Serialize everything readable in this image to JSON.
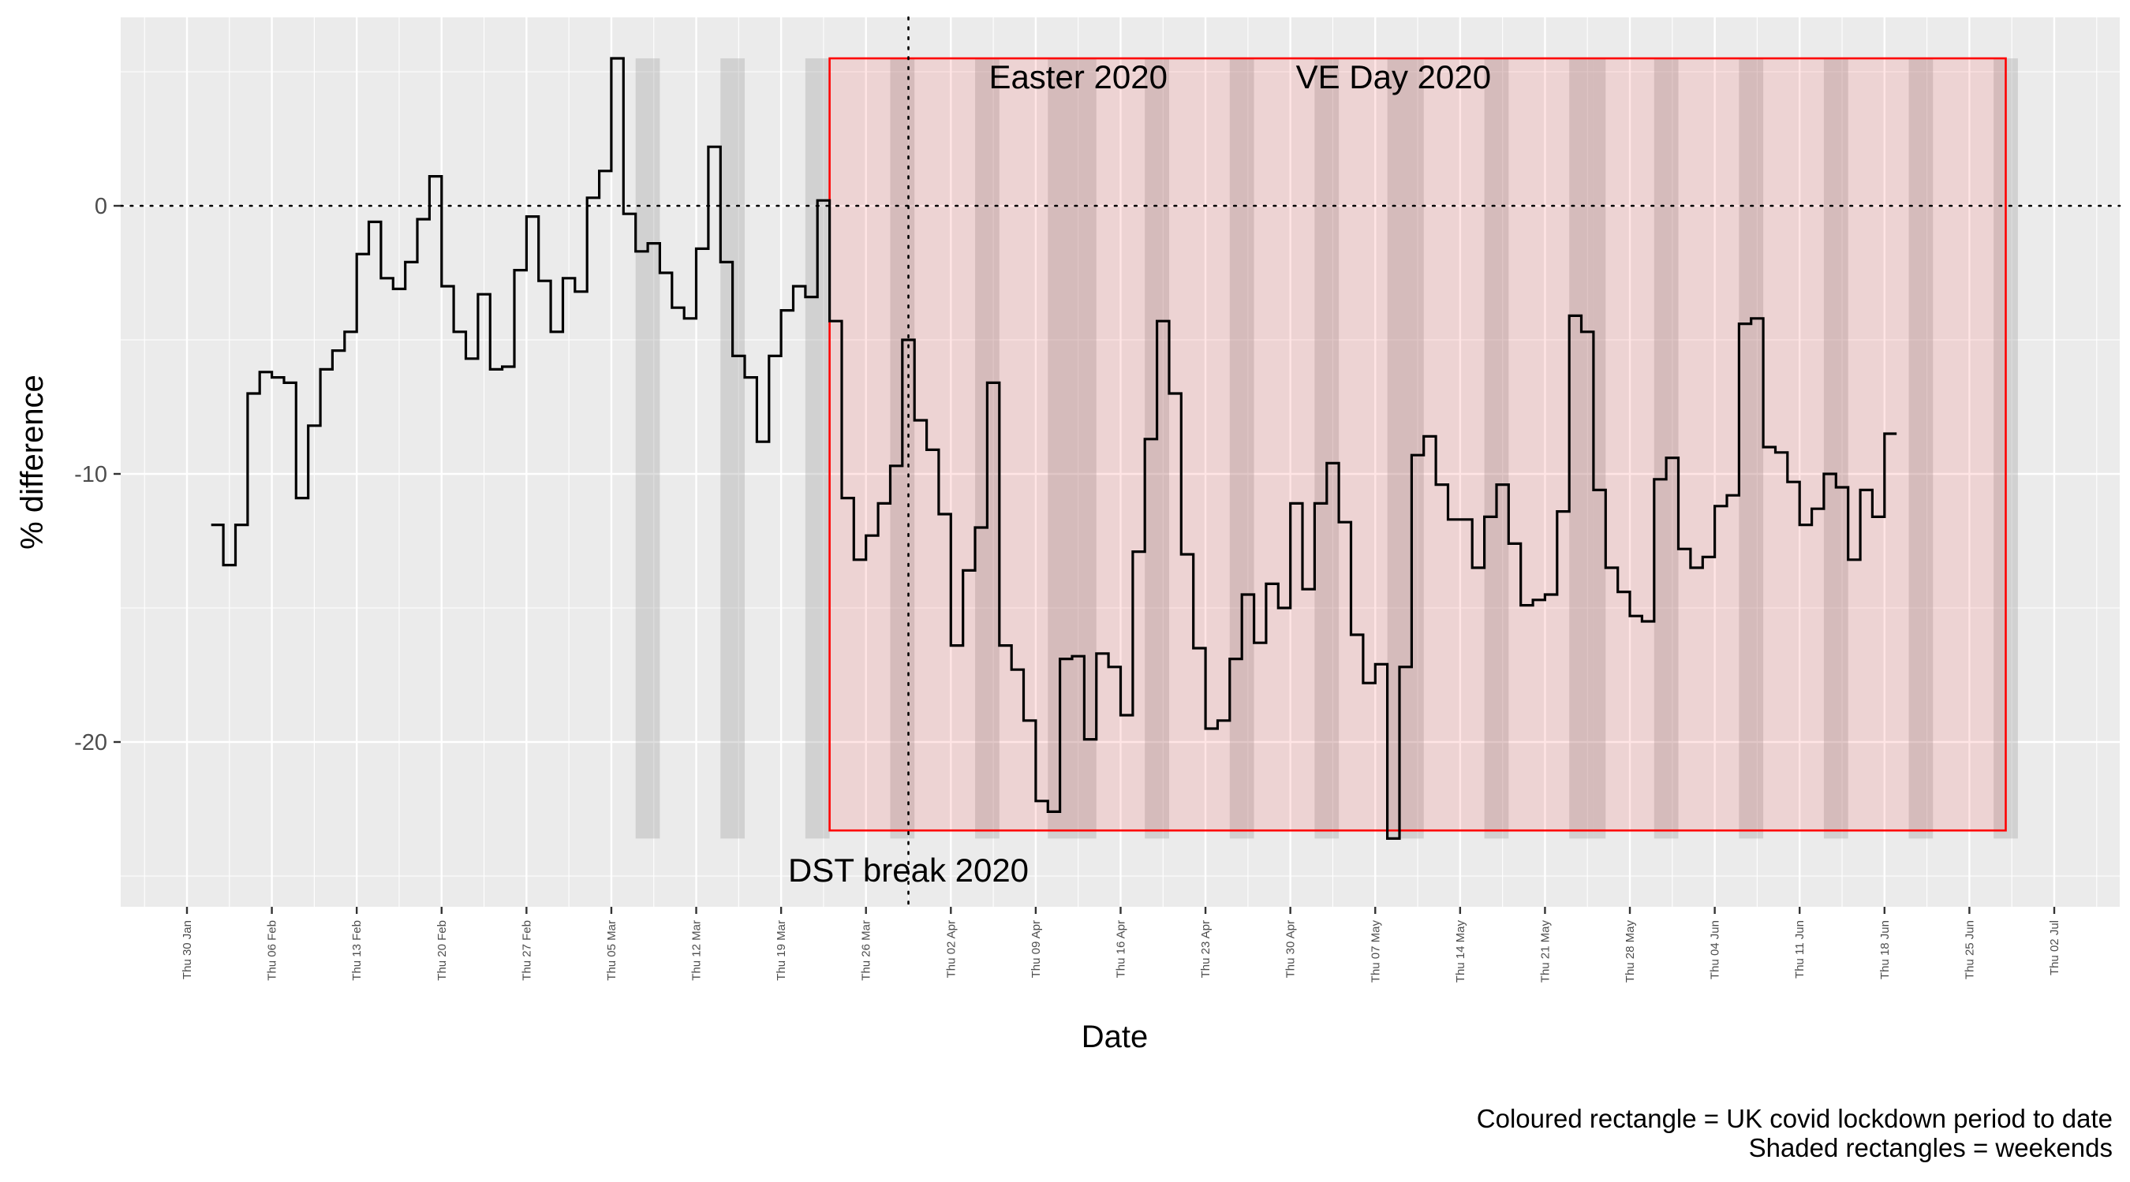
{
  "chart_data": {
    "type": "line",
    "title": "",
    "xlabel": "Date",
    "ylabel": "% difference",
    "x_range": [
      "2020-01-25",
      "2020-07-04"
    ],
    "ylim": [
      -26.1,
      6.5
    ],
    "y_ticks": [
      0,
      -10,
      -20
    ],
    "y_tick_labels": [
      "0",
      "-10",
      "-20"
    ],
    "x_ticks": [
      {
        "date": "2020-01-30",
        "label": "Thu 30 Jan"
      },
      {
        "date": "2020-02-06",
        "label": "Thu 06 Feb"
      },
      {
        "date": "2020-02-13",
        "label": "Thu 13 Feb"
      },
      {
        "date": "2020-02-20",
        "label": "Thu 20 Feb"
      },
      {
        "date": "2020-02-27",
        "label": "Thu 27 Feb"
      },
      {
        "date": "2020-03-05",
        "label": "Thu 05 Mar"
      },
      {
        "date": "2020-03-12",
        "label": "Thu 12 Mar"
      },
      {
        "date": "2020-03-19",
        "label": "Thu 19 Mar"
      },
      {
        "date": "2020-03-26",
        "label": "Thu 26 Mar"
      },
      {
        "date": "2020-04-02",
        "label": "Thu 02 Apr"
      },
      {
        "date": "2020-04-09",
        "label": "Thu 09 Apr"
      },
      {
        "date": "2020-04-16",
        "label": "Thu 16 Apr"
      },
      {
        "date": "2020-04-23",
        "label": "Thu 23 Apr"
      },
      {
        "date": "2020-04-30",
        "label": "Thu 30 Apr"
      },
      {
        "date": "2020-05-07",
        "label": "Thu 07 May"
      },
      {
        "date": "2020-05-14",
        "label": "Thu 14 May"
      },
      {
        "date": "2020-05-21",
        "label": "Thu 21 May"
      },
      {
        "date": "2020-05-28",
        "label": "Thu 28 May"
      },
      {
        "date": "2020-06-04",
        "label": "Thu 04 Jun"
      },
      {
        "date": "2020-06-11",
        "label": "Thu 11 Jun"
      },
      {
        "date": "2020-06-18",
        "label": "Thu 18 Jun"
      },
      {
        "date": "2020-06-25",
        "label": "Thu 25 Jun"
      },
      {
        "date": "2020-07-02",
        "label": "Thu 02 Jul"
      }
    ],
    "series": [
      {
        "style": "step",
        "color": "#000000",
        "x": [
          "2020-02-01",
          "2020-02-02",
          "2020-02-03",
          "2020-02-04",
          "2020-02-05",
          "2020-02-06",
          "2020-02-07",
          "2020-02-08",
          "2020-02-09",
          "2020-02-10",
          "2020-02-11",
          "2020-02-12",
          "2020-02-13",
          "2020-02-14",
          "2020-02-15",
          "2020-02-16",
          "2020-02-17",
          "2020-02-18",
          "2020-02-19",
          "2020-02-20",
          "2020-02-21",
          "2020-02-22",
          "2020-02-23",
          "2020-02-24",
          "2020-02-25",
          "2020-02-26",
          "2020-02-27",
          "2020-02-28",
          "2020-02-29",
          "2020-03-01",
          "2020-03-02",
          "2020-03-03",
          "2020-03-04",
          "2020-03-05",
          "2020-03-06",
          "2020-03-07",
          "2020-03-08",
          "2020-03-09",
          "2020-03-10",
          "2020-03-11",
          "2020-03-12",
          "2020-03-13",
          "2020-03-14",
          "2020-03-15",
          "2020-03-16",
          "2020-03-17",
          "2020-03-18",
          "2020-03-19",
          "2020-03-20",
          "2020-03-21",
          "2020-03-22",
          "2020-03-23",
          "2020-03-24",
          "2020-03-25",
          "2020-03-26",
          "2020-03-27",
          "2020-03-28",
          "2020-03-29",
          "2020-03-30",
          "2020-03-31",
          "2020-04-01",
          "2020-04-02",
          "2020-04-03",
          "2020-04-04",
          "2020-04-05",
          "2020-04-06",
          "2020-04-07",
          "2020-04-08",
          "2020-04-09",
          "2020-04-10",
          "2020-04-11",
          "2020-04-12",
          "2020-04-13",
          "2020-04-14",
          "2020-04-15",
          "2020-04-16",
          "2020-04-17",
          "2020-04-18",
          "2020-04-19",
          "2020-04-20",
          "2020-04-21",
          "2020-04-22",
          "2020-04-23",
          "2020-04-24",
          "2020-04-25",
          "2020-04-26",
          "2020-04-27",
          "2020-04-28",
          "2020-04-29",
          "2020-04-30",
          "2020-05-01",
          "2020-05-02",
          "2020-05-03",
          "2020-05-04",
          "2020-05-05",
          "2020-05-06",
          "2020-05-07",
          "2020-05-08",
          "2020-05-09",
          "2020-05-10",
          "2020-05-11",
          "2020-05-12",
          "2020-05-13",
          "2020-05-14",
          "2020-05-15",
          "2020-05-16",
          "2020-05-17",
          "2020-05-18",
          "2020-05-19",
          "2020-05-20",
          "2020-05-21",
          "2020-05-22",
          "2020-05-23",
          "2020-05-24",
          "2020-05-25",
          "2020-05-26",
          "2020-05-27",
          "2020-05-28",
          "2020-05-29",
          "2020-05-30",
          "2020-05-31",
          "2020-06-01",
          "2020-06-02",
          "2020-06-03",
          "2020-06-04",
          "2020-06-05",
          "2020-06-06",
          "2020-06-07",
          "2020-06-08",
          "2020-06-09",
          "2020-06-10",
          "2020-06-11",
          "2020-06-12",
          "2020-06-13",
          "2020-06-14",
          "2020-06-15",
          "2020-06-16",
          "2020-06-17",
          "2020-06-18"
        ],
        "y": [
          -11.9,
          -13.4,
          -11.9,
          -7.0,
          -6.2,
          -6.4,
          -6.6,
          -10.9,
          -8.2,
          -6.1,
          -5.4,
          -4.7,
          -1.8,
          -0.6,
          -2.7,
          -3.1,
          -2.1,
          -0.5,
          1.1,
          -3.0,
          -4.7,
          -5.7,
          -3.3,
          -6.1,
          -6.0,
          -2.4,
          -0.4,
          -2.8,
          -4.7,
          -2.7,
          -3.2,
          0.3,
          1.3,
          5.5,
          -0.3,
          -1.7,
          -1.4,
          -2.5,
          -3.8,
          -4.2,
          -1.6,
          2.2,
          -2.1,
          -5.6,
          -6.4,
          -8.8,
          -5.6,
          -3.9,
          -3.0,
          -3.4,
          0.2,
          -4.3,
          -10.9,
          -13.2,
          -12.3,
          -11.1,
          -9.7,
          -5.0,
          -8.0,
          -9.1,
          -11.5,
          -16.4,
          -13.6,
          -12.0,
          -6.6,
          -16.4,
          -17.3,
          -19.2,
          -22.2,
          -22.6,
          -16.9,
          -16.8,
          -19.9,
          -16.7,
          -17.2,
          -19.0,
          -12.9,
          -8.7,
          -4.3,
          -7.0,
          -13.0,
          -16.5,
          -19.5,
          -19.2,
          -16.9,
          -14.5,
          -16.3,
          -14.1,
          -15.0,
          -11.1,
          -14.3,
          -11.1,
          -9.6,
          -11.8,
          -16.0,
          -17.8,
          -17.1,
          -23.6,
          -17.2,
          -9.3,
          -8.6,
          -10.4,
          -11.7,
          -11.7,
          -13.5,
          -11.6,
          -10.4,
          -12.6,
          -14.9,
          -14.7,
          -14.5,
          -11.4,
          -4.1,
          -4.7,
          -10.6,
          -13.5,
          -14.4,
          -15.3,
          -15.5,
          -10.2,
          -9.4,
          -12.8,
          -13.5,
          -13.1,
          -11.2,
          -10.8,
          -4.4,
          -4.2,
          -9.0,
          -9.2,
          -10.3,
          -11.9,
          -11.3,
          -10.0,
          -10.5,
          -13.2,
          -10.6,
          -11.6,
          -8.5
        ]
      }
    ],
    "lockdown_period": {
      "start": "2020-03-23",
      "end": "2020-06-28",
      "y_range": [
        -23.3,
        5.5
      ],
      "color": "#ff0000"
    },
    "weekends": {
      "start_dates": [
        "2020-03-07",
        "2020-03-14",
        "2020-03-21",
        "2020-03-28",
        "2020-04-04",
        "2020-04-11",
        "2020-04-18",
        "2020-04-25",
        "2020-05-02",
        "2020-05-09",
        "2020-05-16",
        "2020-05-23",
        "2020-05-30",
        "2020-06-06",
        "2020-06-13",
        "2020-06-20",
        "2020-06-27"
      ],
      "extra_holidays": [
        "2020-04-10",
        "2020-04-13",
        "2020-05-08",
        "2020-05-25"
      ],
      "y_range": [
        -23.6,
        5.5
      ]
    },
    "events": [
      {
        "date": "2020-03-29",
        "label": "DST break 2020",
        "label_y": -24.8,
        "style": "dotted-vertical"
      },
      {
        "date": "2020-04-12",
        "label": "Easter 2020",
        "label_y": 4.8
      },
      {
        "date": "2020-05-08",
        "label": "VE Day 2020",
        "label_y": 4.8
      }
    ],
    "reference_line": {
      "y": 0,
      "style": "dotted-horizontal"
    },
    "legend": "none",
    "grid": true,
    "captions": [
      "Coloured rectangle = UK covid lockdown period to date",
      "Shaded rectangles = weekends"
    ]
  }
}
